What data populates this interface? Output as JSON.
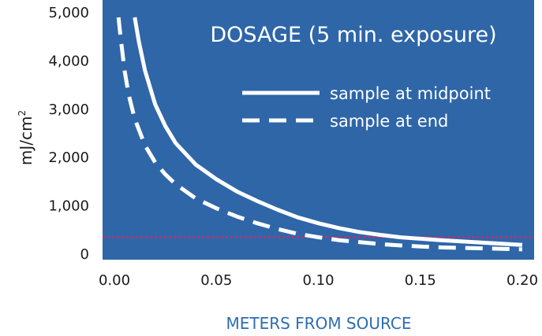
{
  "chart_data": {
    "type": "line",
    "title": "DOSAGE (5 min. exposure)",
    "xlabel": "METERS FROM SOURCE",
    "ylabel_main": "mJ/cm",
    "ylabel_sup": "2",
    "xlim": [
      0.0,
      0.2
    ],
    "ylim": [
      0,
      5000
    ],
    "x_ticks": [
      {
        "value": 0.0,
        "label": "0.00"
      },
      {
        "value": 0.05,
        "label": "0.05"
      },
      {
        "value": 0.1,
        "label": "0.10"
      },
      {
        "value": 0.15,
        "label": "0.15"
      },
      {
        "value": 0.2,
        "label": "0.20"
      }
    ],
    "y_ticks": [
      {
        "value": 0,
        "label": "0"
      },
      {
        "value": 1000,
        "label": "1,000"
      },
      {
        "value": 2000,
        "label": "2,000"
      },
      {
        "value": 3000,
        "label": "3,000"
      },
      {
        "value": 4000,
        "label": "4,000"
      },
      {
        "value": 5000,
        "label": "5,000"
      }
    ],
    "grid": false,
    "legend_position": "top-right",
    "background_color": "#2e66a8",
    "series": [
      {
        "name": "sample at midpoint",
        "style": "solid",
        "color": "#ffffff",
        "x": [
          0.01,
          0.012,
          0.015,
          0.02,
          0.025,
          0.03,
          0.04,
          0.05,
          0.06,
          0.07,
          0.08,
          0.09,
          0.1,
          0.11,
          0.12,
          0.13,
          0.14,
          0.15,
          0.16,
          0.17,
          0.18,
          0.19,
          0.2
        ],
        "y": [
          4900,
          4400,
          3800,
          3100,
          2650,
          2300,
          1850,
          1550,
          1300,
          1100,
          920,
          760,
          640,
          540,
          460,
          400,
          350,
          320,
          290,
          265,
          240,
          215,
          190
        ]
      },
      {
        "name": "sample at end",
        "style": "dashed",
        "color": "#ffffff",
        "x": [
          0.002,
          0.003,
          0.005,
          0.007,
          0.01,
          0.015,
          0.02,
          0.025,
          0.03,
          0.04,
          0.05,
          0.06,
          0.07,
          0.08,
          0.09,
          0.1,
          0.11,
          0.12,
          0.13,
          0.14,
          0.15,
          0.16,
          0.17,
          0.18,
          0.19,
          0.2
        ],
        "y": [
          4900,
          4500,
          3800,
          3300,
          2800,
          2250,
          1900,
          1650,
          1450,
          1150,
          950,
          780,
          640,
          520,
          420,
          350,
          290,
          250,
          210,
          180,
          160,
          140,
          130,
          120,
          110,
          100
        ]
      }
    ],
    "reference_line": {
      "y": 350,
      "color": "#e0245e",
      "style": "dotted"
    }
  }
}
